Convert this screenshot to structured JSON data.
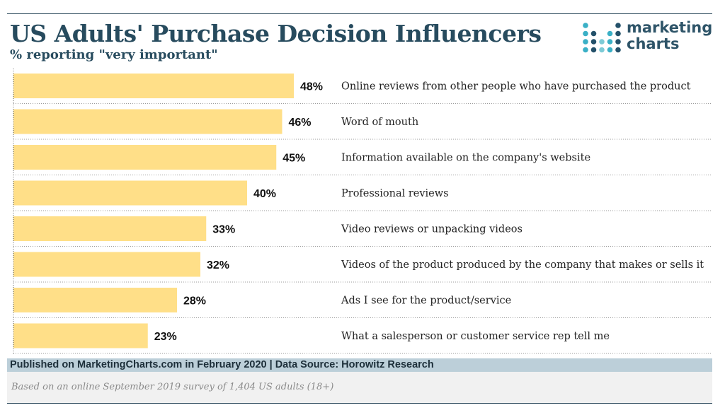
{
  "header": {
    "title": "US Adults' Purchase Decision Influencers",
    "subtitle": "% reporting \"very important\""
  },
  "logo": {
    "line1": "marketing",
    "line2": "charts",
    "dot_colors": [
      "#3ab0c6",
      "#24516a",
      "#7dcbd6"
    ]
  },
  "footer": {
    "published": "Published on MarketingCharts.com in February 2020 | Data Source: Horowitz Research",
    "note": "Based on an online September 2019 survey of 1,404 US adults (18+)"
  },
  "colors": {
    "bar": "#ffdf88",
    "title": "#274b5e",
    "footer_band": "#bccfd9"
  },
  "chart_data": {
    "type": "bar",
    "orientation": "horizontal",
    "categories": [
      "Online reviews from other people who have purchased the product",
      "Word of mouth",
      "Information available on the company's website",
      "Professional reviews",
      "Video reviews or unpacking videos",
      "Videos of the product produced by the company that makes or sells it",
      "Ads I see for the product/service",
      "What a salesperson or customer service rep tell me"
    ],
    "values": [
      48,
      46,
      45,
      40,
      33,
      32,
      28,
      23
    ],
    "value_labels": [
      "48%",
      "46%",
      "45%",
      "40%",
      "33%",
      "32%",
      "28%",
      "23%"
    ],
    "title": "US Adults' Purchase Decision Influencers",
    "xlim": [
      0,
      60
    ],
    "grid": false,
    "legend": "none"
  }
}
